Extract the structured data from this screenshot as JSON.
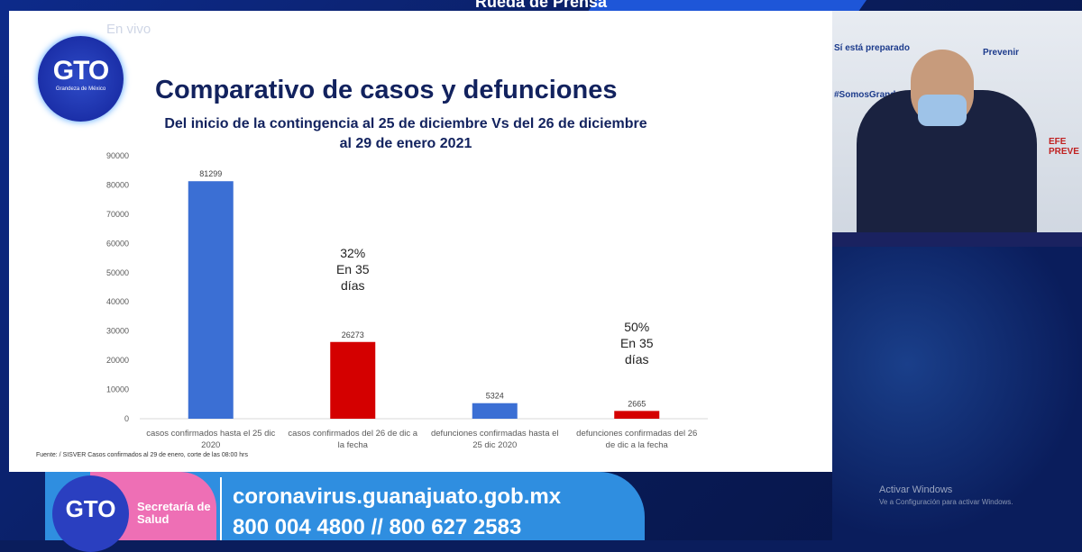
{
  "broadcast": {
    "banner": "Rueda de Prensa",
    "live_label": "En vivo",
    "logo_text": "GTO",
    "logo_tagline": "Grandeza de México"
  },
  "slide": {
    "title": "Comparativo de casos y defunciones",
    "subtitle_line1": "Del inicio de la contingencia al 25 de diciembre Vs del 26 de diciembre",
    "subtitle_line2": "al 29 de enero 2021",
    "source": "Fuente: / SISVER Casos confirmados al 29 de enero, corte de las 08:00 hrs"
  },
  "chart_data": {
    "type": "bar",
    "title": "Comparativo de casos y defunciones",
    "categories": [
      "casos confirmados hasta el 25 dic 2020",
      "casos confirmados del 26 de dic a la fecha",
      "defunciones confirmadas hasta el 25 dic 2020",
      "defunciones confirmadas del 26 de dic a la fecha"
    ],
    "category_lines": [
      [
        "casos confirmados hasta el 25 dic",
        "2020"
      ],
      [
        "casos confirmados del 26 de dic a",
        "la fecha"
      ],
      [
        "defunciones confirmadas hasta el",
        "25 dic 2020"
      ],
      [
        "defunciones confirmadas del 26",
        "de dic a la fecha"
      ]
    ],
    "values": [
      81299,
      26273,
      5324,
      2665
    ],
    "colors": [
      "#3b6fd4",
      "#d40000",
      "#3b6fd4",
      "#d40000"
    ],
    "ylim": [
      0,
      90000
    ],
    "yticks": [
      0,
      10000,
      20000,
      30000,
      40000,
      50000,
      60000,
      70000,
      80000,
      90000
    ],
    "grid": false,
    "annotations": [
      [
        "32%",
        "En 35",
        "días"
      ],
      [
        "50%",
        "En 35",
        "días"
      ]
    ]
  },
  "video": {
    "sponsors": [
      "Sí está preparado",
      "Prevenir",
      "#SomosGrandeza",
      "EFE PREVE"
    ]
  },
  "footer": {
    "logo_text": "GTO",
    "department": "Secretaría de Salud",
    "url": "coronavirus.guanajuato.gob.mx",
    "phones": "800 004 4800  //  800 627 2583"
  },
  "watermark": {
    "line1": "Activar Windows",
    "line2": "Ve a Configuración para activar Windows."
  }
}
